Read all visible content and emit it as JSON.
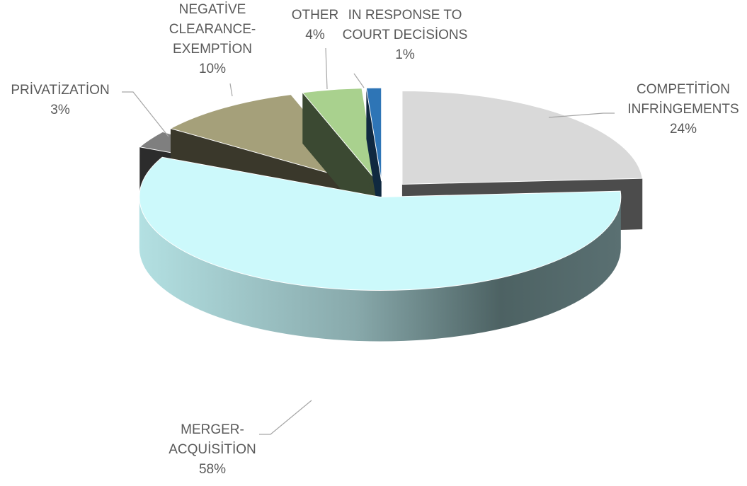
{
  "chart_data": {
    "type": "pie3d",
    "categories": [
      "COMPETİTİON INFRİNGEMENTS",
      "MERGER-ACQUİSİTİON",
      "PRİVATİZATİON",
      "NEGATİVE CLEARANCE-EXEMPTİON",
      "OTHER",
      "IN RESPONSE TO COURT DECİSİONS"
    ],
    "values": [
      24,
      58,
      3,
      10,
      4,
      1
    ],
    "value_labels": [
      "24%",
      "58%",
      "3%",
      "10%",
      "4%",
      "1%"
    ],
    "colors": [
      "#d9d9d9",
      "#ccf9fb",
      "#7f7f7f",
      "#a5a07a",
      "#a9d18e",
      "#2e75b6"
    ]
  }
}
